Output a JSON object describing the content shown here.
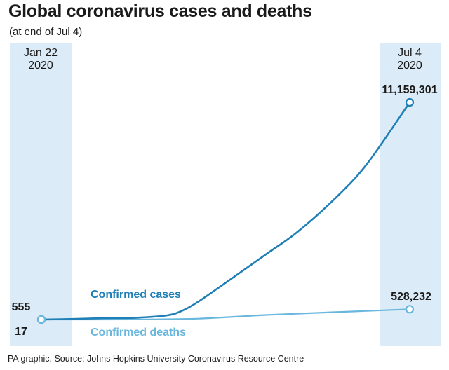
{
  "title": "Global coronavirus cases and deaths",
  "subtitle": "(at end of Jul 4)",
  "source": "PA graphic. Source: Johns Hopkins University Coronavirus Resource Centre",
  "colors": {
    "cases": "#1f7fb6",
    "deaths": "#6ab7de",
    "band": "#dcebf8",
    "text": "#1a1a1a"
  },
  "chart_data": {
    "type": "line",
    "title": "Global coronavirus cases and deaths",
    "subtitle": "(at end of Jul 4)",
    "x_start_label": [
      "Jan 22",
      "2020"
    ],
    "x_end_label": [
      "Jul 4",
      "2020"
    ],
    "x_range": [
      "2020-01-22",
      "2020-07-04"
    ],
    "grid": false,
    "series": [
      {
        "name": "Confirmed cases",
        "color": "#1f7fb6",
        "start_label": "555",
        "end_label": "11,159,301",
        "x": [
          "2020-01-22",
          "2020-02-05",
          "2020-02-19",
          "2020-03-04",
          "2020-03-18",
          "2020-03-25",
          "2020-04-01",
          "2020-04-15",
          "2020-05-01",
          "2020-05-15",
          "2020-06-01",
          "2020-06-15",
          "2020-07-04"
        ],
        "values": [
          555,
          28000,
          75000,
          95000,
          215000,
          470000,
          930000,
          2050000,
          3350000,
          4500000,
          6250000,
          8000000,
          11159301
        ]
      },
      {
        "name": "Confirmed deaths",
        "color": "#6ab7de",
        "start_label": "17",
        "end_label": "528,232",
        "x": [
          "2020-01-22",
          "2020-03-04",
          "2020-04-01",
          "2020-05-01",
          "2020-06-01",
          "2020-07-04"
        ],
        "values": [
          17,
          3300,
          47000,
          235000,
          380000,
          528232
        ]
      }
    ]
  }
}
